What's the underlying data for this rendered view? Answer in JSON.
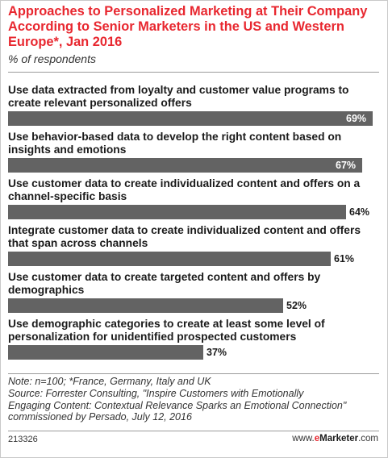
{
  "chart_data": {
    "type": "bar",
    "orientation": "horizontal",
    "title": "Approaches to Personalized Marketing at Their Company According to Senior Marketers in the US and Western Europe*, Jan 2016",
    "subtitle": "% of respondents",
    "categories": [
      "Use data extracted from loyalty and customer value programs to create relevant personalized offers",
      "Use behavior-based data to develop the right content based on insights and emotions",
      "Use customer data to create individualized content and offers on a channel-specific basis",
      "Integrate customer data to create individualized content and offers that span across channels",
      "Use customer data to create targeted content and offers by demographics",
      "Use demographic categories to create at least some level of personalization for unidentified prospected customers"
    ],
    "values": [
      69,
      67,
      64,
      61,
      52,
      37
    ],
    "value_labels": [
      "69%",
      "67%",
      "64%",
      "61%",
      "52%",
      "37%"
    ],
    "xlim": [
      0,
      69
    ],
    "bar_color": "#636363",
    "title_color": "#e8272f",
    "grid": false
  },
  "footnote": {
    "lines": [
      "Note: n=100; *France, Germany, Italy and UK",
      "Source: Forrester Consulting, \"Inspire Customers with Emotionally",
      "Engaging Content: Contextual Relevance Sparks an Emotional Connection\"",
      "commissioned by Persado, July 12, 2016"
    ]
  },
  "footer": {
    "chart_id": "213326",
    "brand_prefix": "www.",
    "brand_e": "e",
    "brand_name": "Marketer",
    "brand_suffix": ".com"
  }
}
